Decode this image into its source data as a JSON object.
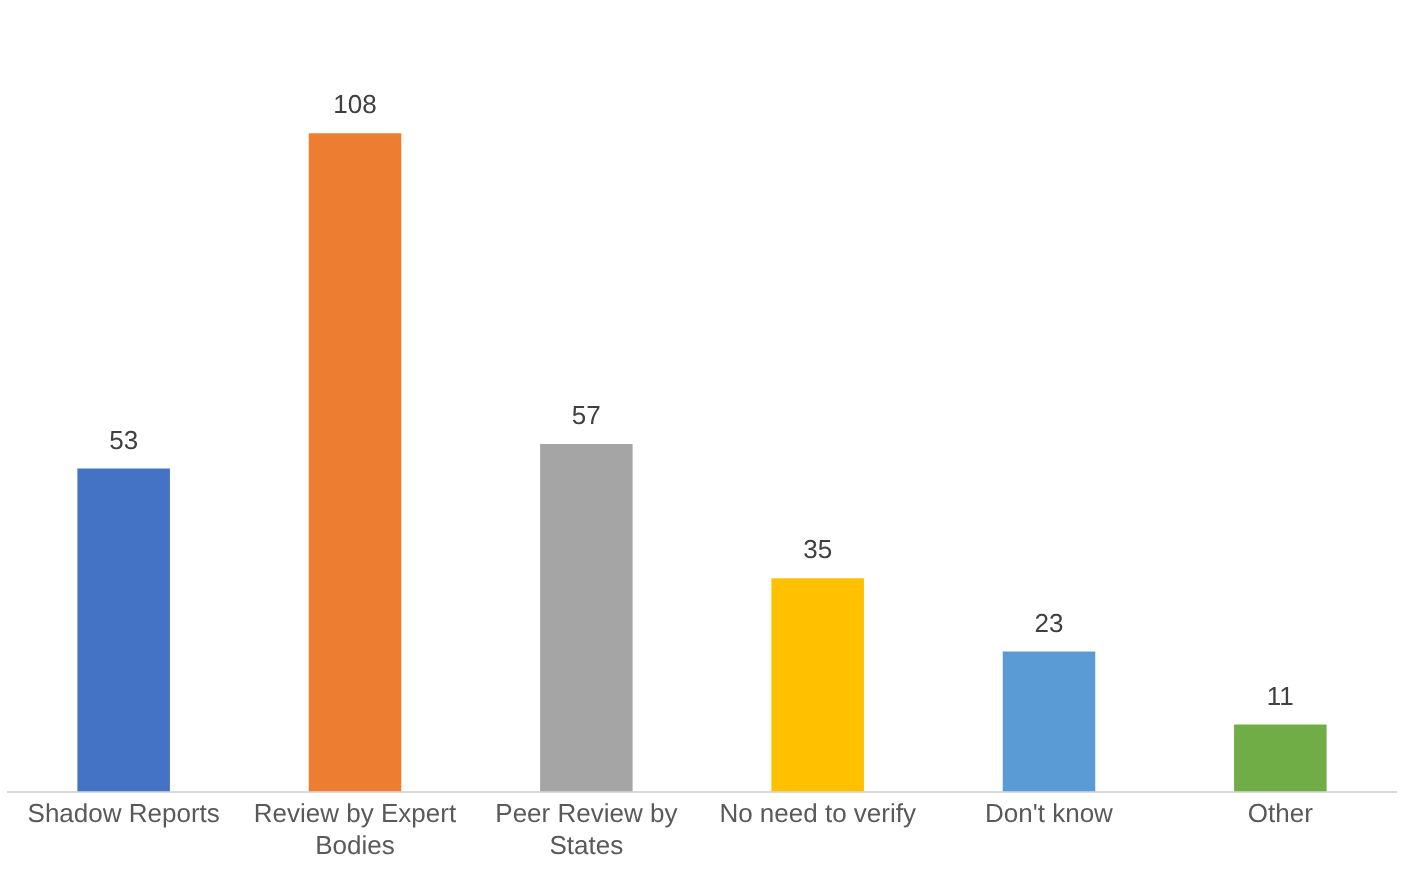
{
  "chart_data": {
    "type": "bar",
    "categories": [
      "Shadow Reports",
      "Review by Expert Bodies",
      "Peer Review by States",
      "No need to verify",
      "Don't know",
      "Other"
    ],
    "values": [
      53,
      108,
      57,
      35,
      23,
      11
    ],
    "colors": [
      "#4472c4",
      "#ed7d31",
      "#a5a5a5",
      "#ffc000",
      "#5b9bd5",
      "#70ad47"
    ],
    "data_labels": true,
    "grid": false,
    "legend": false
  }
}
